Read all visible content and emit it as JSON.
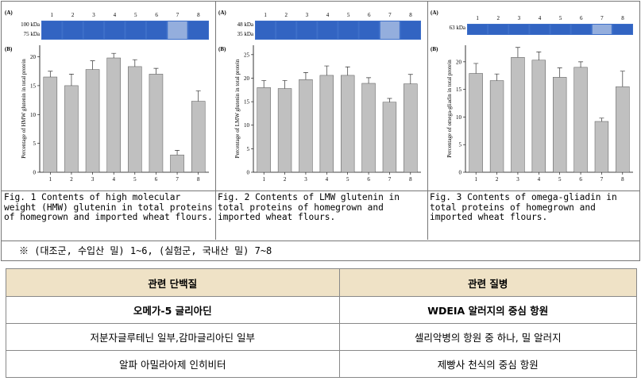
{
  "chart_data": [
    {
      "type": "bar",
      "panel_a": "(A)",
      "panel_b": "(B)",
      "gel_markers": [
        "100 kDa",
        "75 kDa"
      ],
      "y_label": "Percentage of HMW glutenin in total protein",
      "categories": [
        "1",
        "2",
        "3",
        "4",
        "5",
        "6",
        "7",
        "8"
      ],
      "values": [
        16.5,
        15,
        17.8,
        19.8,
        18.3,
        17,
        3,
        12.3
      ],
      "errors": [
        1,
        2,
        1.5,
        0.8,
        1.2,
        1,
        0.8,
        1.8
      ],
      "color": "#c0c0c0",
      "ylim": [
        0,
        22
      ],
      "yticks": [
        0,
        5,
        10,
        15,
        20
      ],
      "caption": "Fig. 1 Contents of high molecular weight (HMW) glutenin in total proteins of homegrown and imported wheat flours."
    },
    {
      "type": "bar",
      "panel_a": "(A)",
      "panel_b": "(B)",
      "gel_markers": [
        "48 kDa",
        "35 kDa"
      ],
      "y_label": "Percentage of LMW glutenin in total protein",
      "categories": [
        "1",
        "2",
        "3",
        "4",
        "5",
        "6",
        "7",
        "8"
      ],
      "values": [
        18,
        17.8,
        19.7,
        20.6,
        20.6,
        18.9,
        14.9,
        18.8
      ],
      "errors": [
        1.5,
        1.7,
        1.5,
        2,
        1.8,
        1.2,
        0.8,
        2
      ],
      "color": "#c0c0c0",
      "ylim": [
        0,
        27
      ],
      "yticks": [
        0,
        5,
        10,
        15,
        20,
        25
      ],
      "caption": "Fig. 2 Contents of LMW glutenin in total proteins of homegrown and imported wheat flours."
    },
    {
      "type": "bar",
      "panel_a": "(A)",
      "panel_b": "(B)",
      "gel_markers": [
        "63 kDa"
      ],
      "y_label": "Percentage of omega-gliadin in total protein",
      "categories": [
        "1",
        "2",
        "3",
        "4",
        "5",
        "6",
        "7",
        "8"
      ],
      "values": [
        17.9,
        16.6,
        20.8,
        20.3,
        17.2,
        19,
        9.2,
        15.5
      ],
      "errors": [
        1.8,
        1.2,
        1.8,
        1.5,
        1.7,
        1,
        0.6,
        2.8
      ],
      "color": "#c0c0c0",
      "ylim": [
        0,
        23
      ],
      "yticks": [
        0,
        5,
        10,
        15,
        20
      ],
      "caption": "Fig. 3 Contents of omega-gliadin in total proteins of homegrown and imported wheat flours."
    }
  ],
  "note": "※ (대조군, 수입산 밀) 1~6, (실험군, 국내산 밀) 7~8",
  "table": {
    "header": [
      "관련 단백질",
      "관련 질병"
    ],
    "rows": [
      [
        "오메가-5 글리아딘",
        "WDEIA 알러지의 중심 항원"
      ],
      [
        "저분자글루테닌 일부,감마글리아딘 일부",
        "셀리악병의 항원 중 하나, 밀 알러지"
      ],
      [
        "알파 아밀라아제 인히비터",
        "제빵사 천식의 중심 항원"
      ]
    ]
  }
}
